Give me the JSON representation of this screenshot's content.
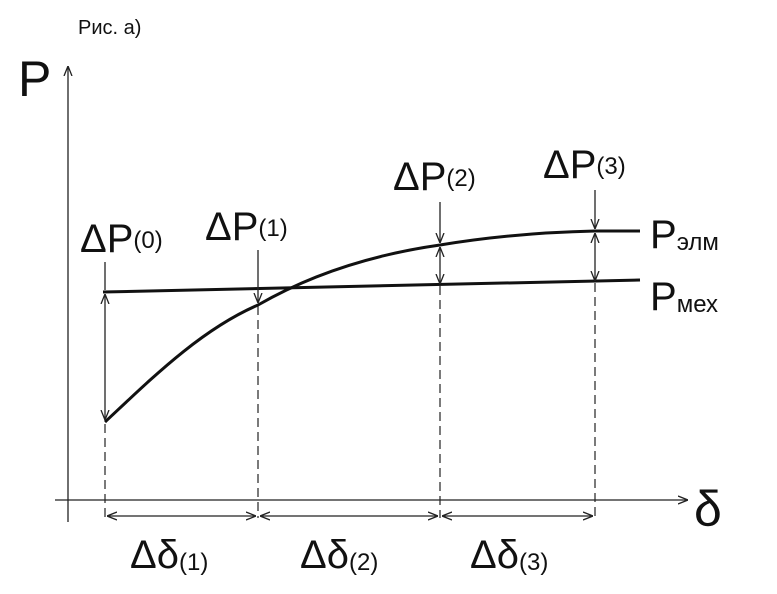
{
  "caption": "Рис. а)",
  "axes": {
    "y_label": "P",
    "x_label": "δ"
  },
  "curves": [
    {
      "label": {
        "main": "P",
        "sub": "элм"
      }
    },
    {
      "label": {
        "main": "P",
        "sub": "мех"
      }
    }
  ],
  "power_steps": [
    {
      "main": "ΔP",
      "sub": "(0)"
    },
    {
      "main": "ΔP",
      "sub": "(1)"
    },
    {
      "main": "ΔP",
      "sub": "(2)"
    },
    {
      "main": "ΔP",
      "sub": "(3)"
    }
  ],
  "angle_steps": [
    {
      "main": "Δδ",
      "sub": "(1)"
    },
    {
      "main": "Δδ",
      "sub": "(2)"
    },
    {
      "main": "Δδ",
      "sub": "(3)"
    }
  ]
}
